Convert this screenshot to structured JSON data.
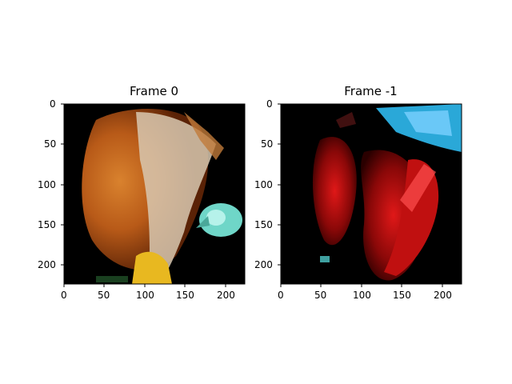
{
  "figure": {
    "panels": [
      {
        "title": "Frame 0",
        "image_description_name": "surgical-frame-0-image",
        "x_ticks": [
          "0",
          "50",
          "100",
          "150",
          "200"
        ],
        "y_ticks": [
          "0",
          "50",
          "100",
          "150",
          "200"
        ],
        "x_range": [
          0,
          224
        ],
        "y_range": [
          0,
          224
        ]
      },
      {
        "title": "Frame -1",
        "image_description_name": "surgical-frame-last-image",
        "x_ticks": [
          "0",
          "50",
          "100",
          "150",
          "200"
        ],
        "y_ticks": [
          "0",
          "50",
          "100",
          "150",
          "200"
        ],
        "x_range": [
          0,
          224
        ],
        "y_range": [
          0,
          224
        ]
      }
    ]
  }
}
